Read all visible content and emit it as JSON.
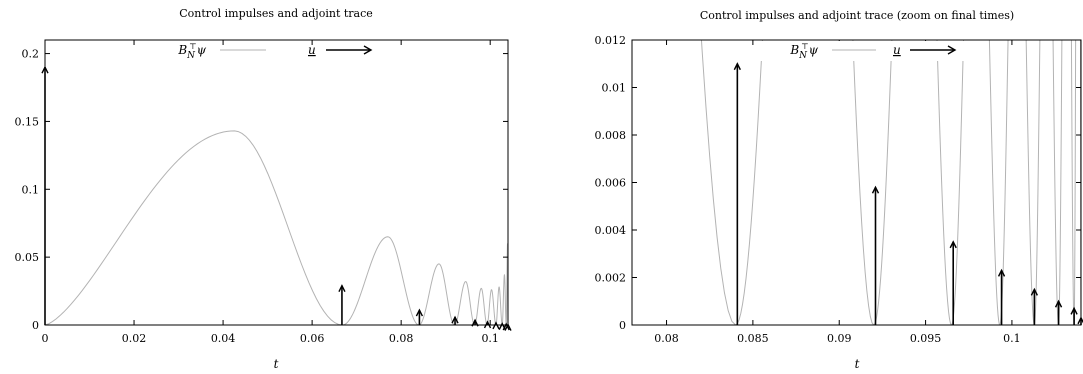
{
  "chart_data": [
    {
      "type": "line",
      "title": "Control impulses and adjoint trace",
      "xlabel": "t",
      "ylabel": "",
      "xlim": [
        0,
        0.104
      ],
      "ylim": [
        0,
        0.21
      ],
      "xticks": [
        {
          "v": 0,
          "label": "0"
        },
        {
          "v": 0.02,
          "label": "0.02"
        },
        {
          "v": 0.04,
          "label": "0.04"
        },
        {
          "v": 0.06,
          "label": "0.06"
        },
        {
          "v": 0.08,
          "label": "0.08"
        },
        {
          "v": 0.1,
          "label": "0.1"
        }
      ],
      "yticks": [
        {
          "v": 0,
          "label": "0"
        },
        {
          "v": 0.05,
          "label": "0.05"
        },
        {
          "v": 0.1,
          "label": "0.1"
        },
        {
          "v": 0.15,
          "label": "0.15"
        },
        {
          "v": 0.2,
          "label": "0.2"
        }
      ],
      "grid": false,
      "legend_position": "top",
      "series": [
        {
          "name": "B_N^⊤ψ",
          "style": "gray-line",
          "color": "#b3b3b3",
          "arches": [
            {
              "start": 0,
              "end": 0.0668,
              "peak_t": 0.0425,
              "peak": 0.143
            },
            {
              "start": 0.0668,
              "end": 0.084,
              "peak_t": 0.077,
              "peak": 0.065
            },
            {
              "start": 0.084,
              "end": 0.092,
              "peak_t": 0.0885,
              "peak": 0.045
            },
            {
              "start": 0.092,
              "end": 0.0965,
              "peak_t": 0.0945,
              "peak": 0.032
            },
            {
              "start": 0.0965,
              "end": 0.0993,
              "peak_t": 0.098,
              "peak": 0.027
            },
            {
              "start": 0.0993,
              "end": 0.1013,
              "peak_t": 0.1003,
              "peak": 0.026
            },
            {
              "start": 0.1013,
              "end": 0.1027,
              "peak_t": 0.102,
              "peak": 0.028
            },
            {
              "start": 0.1027,
              "end": 0.1036,
              "peak_t": 0.1032,
              "peak": 0.037
            },
            {
              "start": 0.1036,
              "end": 0.104,
              "peak_t": 0.1039,
              "peak": 0.06
            }
          ]
        },
        {
          "name": "u",
          "style": "impulse-arrows",
          "color": "#000000",
          "impulses": [
            {
              "t": 0,
              "value": 0.19
            },
            {
              "t": 0.0667,
              "value": 0.029
            },
            {
              "t": 0.0841,
              "value": 0.011
            },
            {
              "t": 0.0921,
              "value": 0.0058
            },
            {
              "t": 0.0966,
              "value": 0.0035
            },
            {
              "t": 0.0994,
              "value": 0.0023
            },
            {
              "t": 0.1013,
              "value": 0.0015
            },
            {
              "t": 0.1027,
              "value": 0.001
            },
            {
              "t": 0.1036,
              "value": 0.0007
            },
            {
              "t": 0.104,
              "value": 0.0003
            }
          ]
        }
      ]
    },
    {
      "type": "line",
      "title": "Control impulses and adjoint trace (zoom on final times)",
      "xlabel": "t",
      "ylabel": "",
      "xlim": [
        0.078,
        0.104
      ],
      "ylim": [
        0,
        0.012
      ],
      "xticks": [
        {
          "v": 0.08,
          "label": "0.08"
        },
        {
          "v": 0.085,
          "label": "0.085"
        },
        {
          "v": 0.09,
          "label": "0.09"
        },
        {
          "v": 0.095,
          "label": "0.095"
        },
        {
          "v": 0.1,
          "label": "0.1"
        }
      ],
      "yticks": [
        {
          "v": 0,
          "label": "0"
        },
        {
          "v": 0.002,
          "label": "0.002"
        },
        {
          "v": 0.004,
          "label": "0.004"
        },
        {
          "v": 0.006,
          "label": "0.006"
        },
        {
          "v": 0.008,
          "label": "0.008"
        },
        {
          "v": 0.01,
          "label": "0.01"
        },
        {
          "v": 0.012,
          "label": "0.012"
        }
      ],
      "grid": false,
      "legend_position": "top",
      "series": [
        {
          "name": "B_N^⊤ψ",
          "style": "gray-line",
          "color": "#b3b3b3",
          "arches": [
            {
              "start": 0.0668,
              "end": 0.084,
              "peak_t": 0.077,
              "peak": 0.065
            },
            {
              "start": 0.084,
              "end": 0.092,
              "peak_t": 0.0885,
              "peak": 0.045
            },
            {
              "start": 0.092,
              "end": 0.0965,
              "peak_t": 0.0945,
              "peak": 0.032
            },
            {
              "start": 0.0965,
              "end": 0.0993,
              "peak_t": 0.098,
              "peak": 0.027
            },
            {
              "start": 0.0993,
              "end": 0.1013,
              "peak_t": 0.1003,
              "peak": 0.026
            },
            {
              "start": 0.1013,
              "end": 0.1027,
              "peak_t": 0.102,
              "peak": 0.028
            },
            {
              "start": 0.1027,
              "end": 0.1036,
              "peak_t": 0.1032,
              "peak": 0.037
            },
            {
              "start": 0.1036,
              "end": 0.104,
              "peak_t": 0.1039,
              "peak": 0.06
            }
          ]
        },
        {
          "name": "u",
          "style": "impulse-arrows",
          "color": "#000000",
          "impulses": [
            {
              "t": 0.0841,
              "value": 0.011
            },
            {
              "t": 0.0921,
              "value": 0.0058
            },
            {
              "t": 0.0966,
              "value": 0.0035
            },
            {
              "t": 0.0994,
              "value": 0.0023
            },
            {
              "t": 0.1013,
              "value": 0.0015
            },
            {
              "t": 0.1027,
              "value": 0.001
            },
            {
              "t": 0.1036,
              "value": 0.0007
            },
            {
              "t": 0.104,
              "value": 0.0003
            }
          ]
        }
      ]
    }
  ]
}
